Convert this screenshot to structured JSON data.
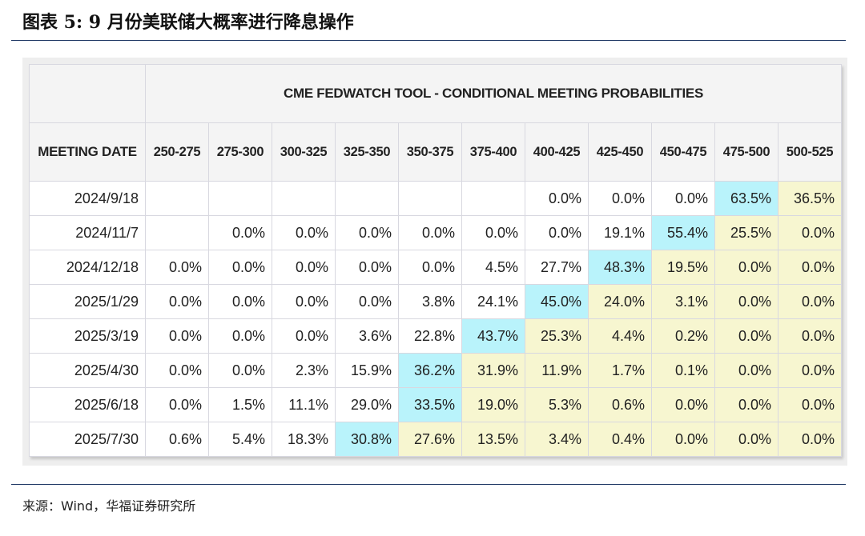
{
  "title": "图表 5:  9 月份美联储大概率进行降息操作",
  "source": "来源：Wind，华福证券研究所",
  "colors": {
    "peak": "#b9f3fb",
    "above_peak": "#f7f6d0",
    "normal": "#ffffff"
  },
  "table": {
    "super_header": "CME FEDWATCH TOOL - CONDITIONAL MEETING PROBABILITIES",
    "first_header": "MEETING DATE",
    "columns": [
      "250-275",
      "275-300",
      "300-325",
      "325-350",
      "350-375",
      "375-400",
      "400-425",
      "425-450",
      "450-475",
      "475-500",
      "500-525"
    ],
    "rows": [
      {
        "date": "2024/9/18",
        "peak_col": 9,
        "values": [
          "",
          "",
          "",
          "",
          "",
          "",
          "0.0%",
          "0.0%",
          "0.0%",
          "63.5%",
          "36.5%"
        ]
      },
      {
        "date": "2024/11/7",
        "peak_col": 8,
        "values": [
          "",
          "0.0%",
          "0.0%",
          "0.0%",
          "0.0%",
          "0.0%",
          "0.0%",
          "19.1%",
          "55.4%",
          "25.5%",
          "0.0%"
        ]
      },
      {
        "date": "2024/12/18",
        "peak_col": 7,
        "values": [
          "0.0%",
          "0.0%",
          "0.0%",
          "0.0%",
          "0.0%",
          "4.5%",
          "27.7%",
          "48.3%",
          "19.5%",
          "0.0%",
          "0.0%"
        ]
      },
      {
        "date": "2025/1/29",
        "peak_col": 6,
        "values": [
          "0.0%",
          "0.0%",
          "0.0%",
          "0.0%",
          "3.8%",
          "24.1%",
          "45.0%",
          "24.0%",
          "3.1%",
          "0.0%",
          "0.0%"
        ]
      },
      {
        "date": "2025/3/19",
        "peak_col": 5,
        "values": [
          "0.0%",
          "0.0%",
          "0.0%",
          "3.6%",
          "22.8%",
          "43.7%",
          "25.3%",
          "4.4%",
          "0.2%",
          "0.0%",
          "0.0%"
        ]
      },
      {
        "date": "2025/4/30",
        "peak_col": 4,
        "values": [
          "0.0%",
          "0.0%",
          "2.3%",
          "15.9%",
          "36.2%",
          "31.9%",
          "11.9%",
          "1.7%",
          "0.1%",
          "0.0%",
          "0.0%"
        ]
      },
      {
        "date": "2025/6/18",
        "peak_col": 4,
        "values": [
          "0.0%",
          "1.5%",
          "11.1%",
          "29.0%",
          "33.5%",
          "19.0%",
          "5.3%",
          "0.6%",
          "0.0%",
          "0.0%",
          "0.0%"
        ]
      },
      {
        "date": "2025/7/30",
        "peak_col": 3,
        "values": [
          "0.6%",
          "5.4%",
          "18.3%",
          "30.8%",
          "27.6%",
          "13.5%",
          "3.4%",
          "0.4%",
          "0.0%",
          "0.0%",
          "0.0%"
        ]
      }
    ]
  }
}
